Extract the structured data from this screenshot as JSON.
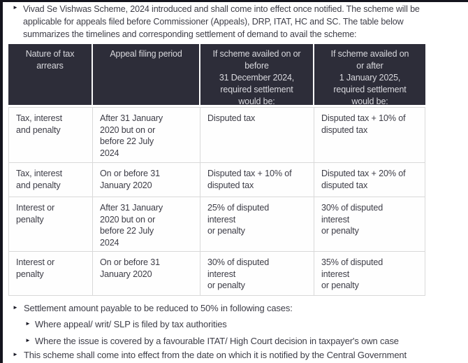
{
  "glyphs": {
    "bullet": "►"
  },
  "intro": {
    "text": "Vivad Se Vishwas Scheme, 2024 introduced and shall come into effect once notified. The scheme will be\napplicable for appeals filed before Commissioner (Appeals), DRP, ITAT, HC and SC. The table below\nsummarizes the timelines and corresponding settlement of demand to avail the scheme:"
  },
  "table": {
    "headers": [
      "Nature of tax\narrears",
      "Appeal filing period",
      "If scheme availed on or\nbefore\n31 December 2024,\nrequired settlement\nwould be:",
      "If scheme availed on\nor after\n1 January 2025,\nrequired settlement\nwould be:"
    ],
    "rows": [
      [
        "Tax, interest\nand penalty",
        "After 31 January\n2020 but on or\nbefore 22 July\n2024",
        "Disputed tax",
        "Disputed tax + 10% of\ndisputed tax"
      ],
      [
        "Tax, interest\nand penalty",
        "On or before 31\nJanuary 2020",
        "Disputed tax + 10% of\ndisputed tax",
        "Disputed tax + 20% of\ndisputed tax"
      ],
      [
        "Interest or\npenalty",
        "After 31 January\n2020 but on or\nbefore 22 July\n2024",
        "25% of disputed\ninterest\nor penalty",
        "30% of disputed\ninterest\nor penalty"
      ],
      [
        "Interest or\npenalty",
        "On or before 31\nJanuary 2020",
        "30% of disputed\ninterest\nor penalty",
        "35% of disputed\ninterest\nor penalty"
      ]
    ]
  },
  "notes": [
    {
      "text": "Settlement amount payable to be reduced to 50% in following cases:"
    },
    {
      "text": "Where appeal/ writ/ SLP is filed by tax authorities"
    },
    {
      "text": "Where the issue is covered by a favourable ITAT/ High Court decision in taxpayer's own case"
    },
    {
      "text": "This scheme shall come into effect from the date on which it is notified by the Central Government"
    }
  ],
  "colors": {
    "header_bg": "#2d2d39",
    "header_text": "#d8d8dd",
    "body_text": "#3d3d47",
    "table_border": "#d9d9d9",
    "page_edge": "#14141d"
  }
}
